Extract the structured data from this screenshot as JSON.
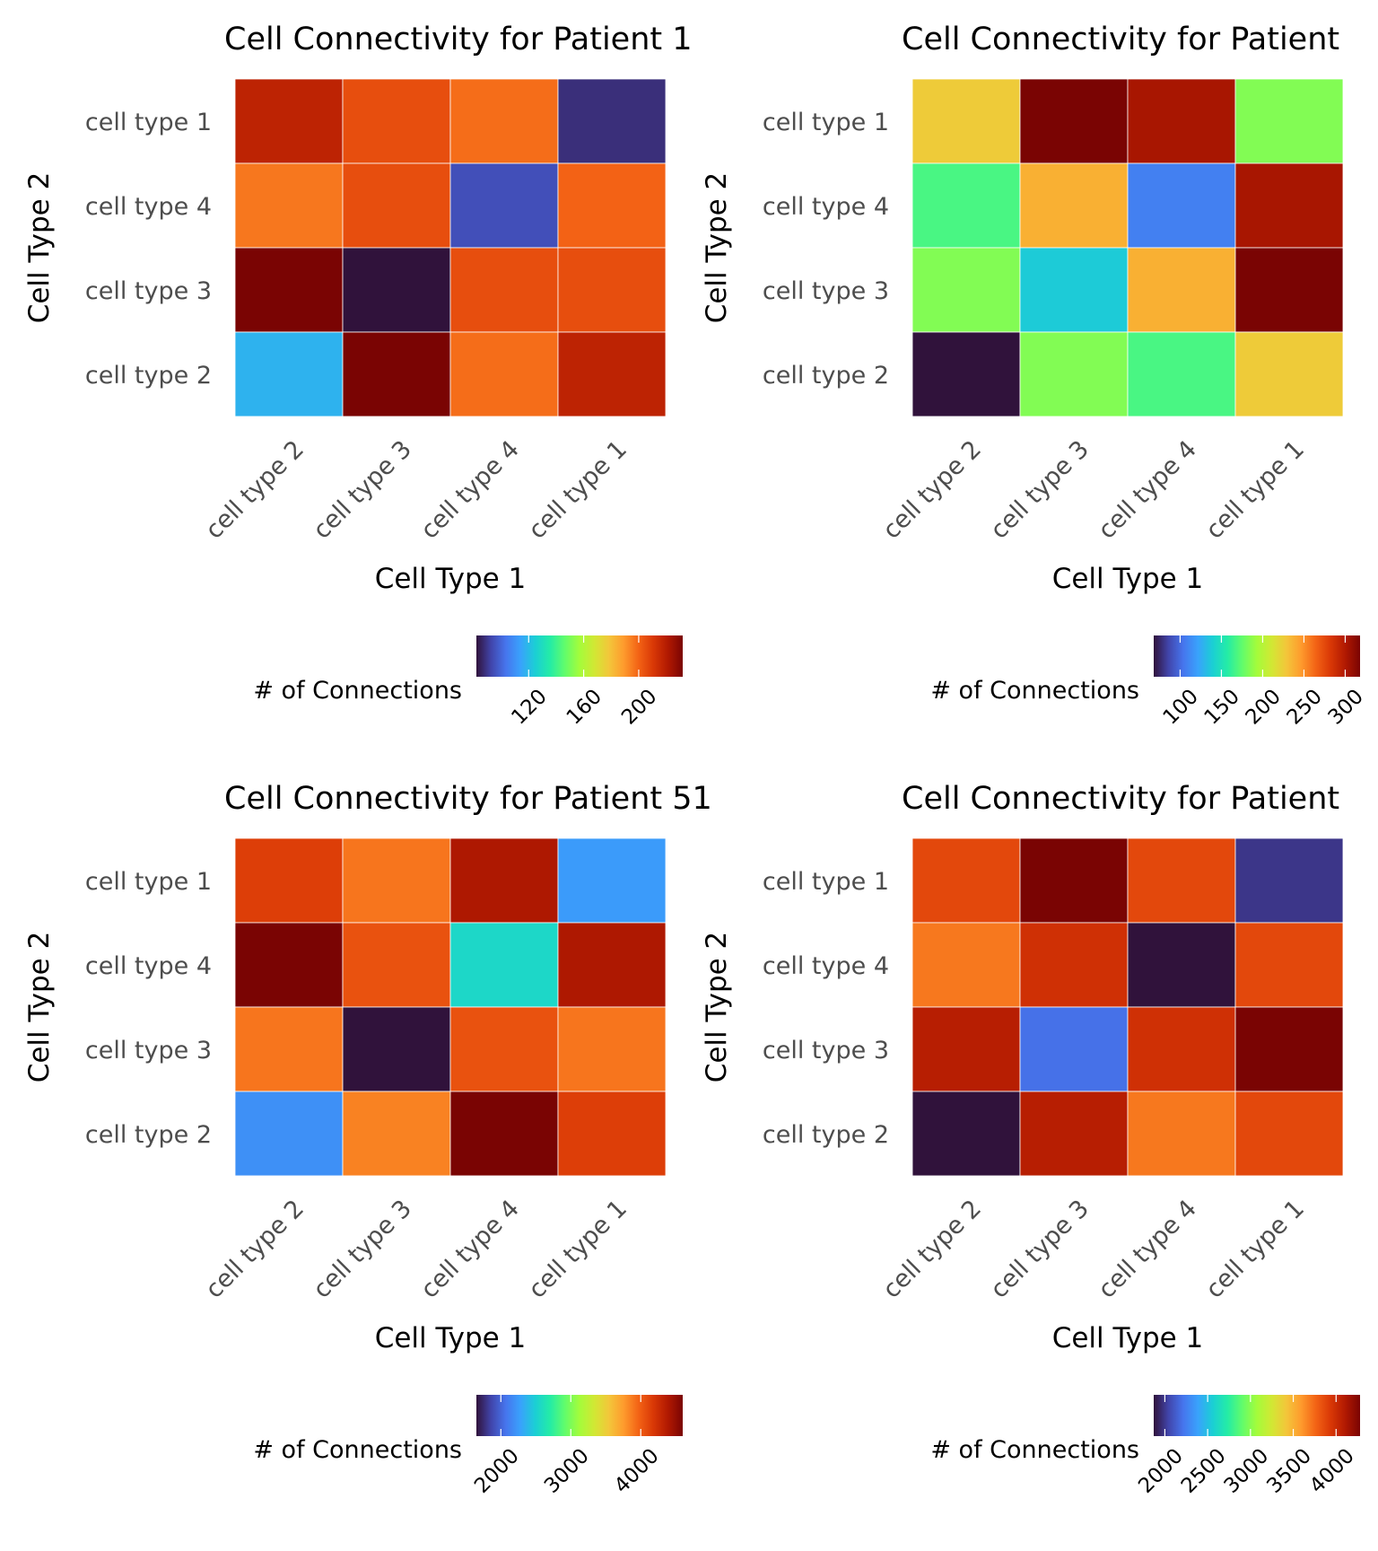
{
  "colormap": [
    "#30123b",
    "#4145ab",
    "#4675ed",
    "#39a2fc",
    "#1bcfd4",
    "#24eca6",
    "#61fc6c",
    "#a4fc3b",
    "#d1e834",
    "#f3c63a",
    "#fe9b2d",
    "#f36315",
    "#d93806",
    "#b11901",
    "#7a0403"
  ],
  "chart_data": [
    {
      "type": "heatmap",
      "title": "Cell Connectivity for Patient 1",
      "xlabel": "Cell Type 1",
      "ylabel": "Cell Type 2",
      "x_categories": [
        "cell type 2",
        "cell type 3",
        "cell type 4",
        "cell type 1"
      ],
      "y_categories": [
        "cell type 1",
        "cell type 4",
        "cell type 3",
        "cell type 2"
      ],
      "values": [
        [
          218,
          205,
          198,
          88
        ],
        [
          196,
          205,
          95,
          200
        ],
        [
          232,
          82,
          205,
          205
        ],
        [
          118,
          232,
          198,
          218
        ]
      ],
      "legend": {
        "title": "# of Connections",
        "range": [
          82,
          232
        ],
        "ticks": [
          120,
          160,
          200
        ],
        "tick_labels": [
          "120",
          "160",
          "200"
        ]
      }
    },
    {
      "type": "heatmap",
      "title": "Cell Connectivity for Patient",
      "xlabel": "Cell Type 1",
      "ylabel": "Cell Type 2",
      "x_categories": [
        "cell type 2",
        "cell type 3",
        "cell type 4",
        "cell type 1"
      ],
      "y_categories": [
        "cell type 1",
        "cell type 4",
        "cell type 3",
        "cell type 2"
      ],
      "values": [
        [
          226,
          318,
          303,
          184
        ],
        [
          168,
          238,
          108,
          303
        ],
        [
          184,
          138,
          238,
          318
        ],
        [
          68,
          184,
          168,
          226
        ]
      ],
      "legend": {
        "title": "# of Connections",
        "range": [
          68,
          318
        ],
        "ticks": [
          100,
          150,
          200,
          250,
          300
        ],
        "tick_labels": [
          "100",
          "150",
          "200",
          "250",
          "300"
        ]
      }
    },
    {
      "type": "heatmap",
      "title": "Cell Connectivity for Patient 51",
      "xlabel": "Cell Type 1",
      "ylabel": "Cell Type 2",
      "x_categories": [
        "cell type 2",
        "cell type 3",
        "cell type 4",
        "cell type 1"
      ],
      "y_categories": [
        "cell type 1",
        "cell type 4",
        "cell type 3",
        "cell type 2"
      ],
      "values": [
        [
          4150,
          3900,
          4400,
          2250
        ],
        [
          4600,
          4050,
          2550,
          4400
        ],
        [
          3900,
          1650,
          4050,
          3900
        ],
        [
          2200,
          3850,
          4600,
          4150
        ]
      ],
      "legend": {
        "title": "# of Connections",
        "range": [
          1650,
          4600
        ],
        "ticks": [
          2000,
          3000,
          4000
        ],
        "tick_labels": [
          "2000",
          "3000",
          "4000"
        ]
      }
    },
    {
      "type": "heatmap",
      "title": "Cell Connectivity for Patient",
      "xlabel": "Cell Type 1",
      "ylabel": "Cell Type 2",
      "x_categories": [
        "cell type 2",
        "cell type 3",
        "cell type 4",
        "cell type 1"
      ],
      "y_categories": [
        "cell type 1",
        "cell type 4",
        "cell type 3",
        "cell type 2"
      ],
      "values": [
        [
          3870,
          4280,
          3870,
          1990
        ],
        [
          3700,
          3980,
          1870,
          3870
        ],
        [
          4080,
          2200,
          3980,
          4280
        ],
        [
          1870,
          4080,
          3700,
          3870
        ]
      ],
      "legend": {
        "title": "# of Connections",
        "range": [
          1870,
          4280
        ],
        "ticks": [
          2000,
          2500,
          3000,
          3500,
          4000
        ],
        "tick_labels": [
          "2000",
          "2500",
          "3000",
          "3500",
          "4000"
        ]
      }
    }
  ]
}
